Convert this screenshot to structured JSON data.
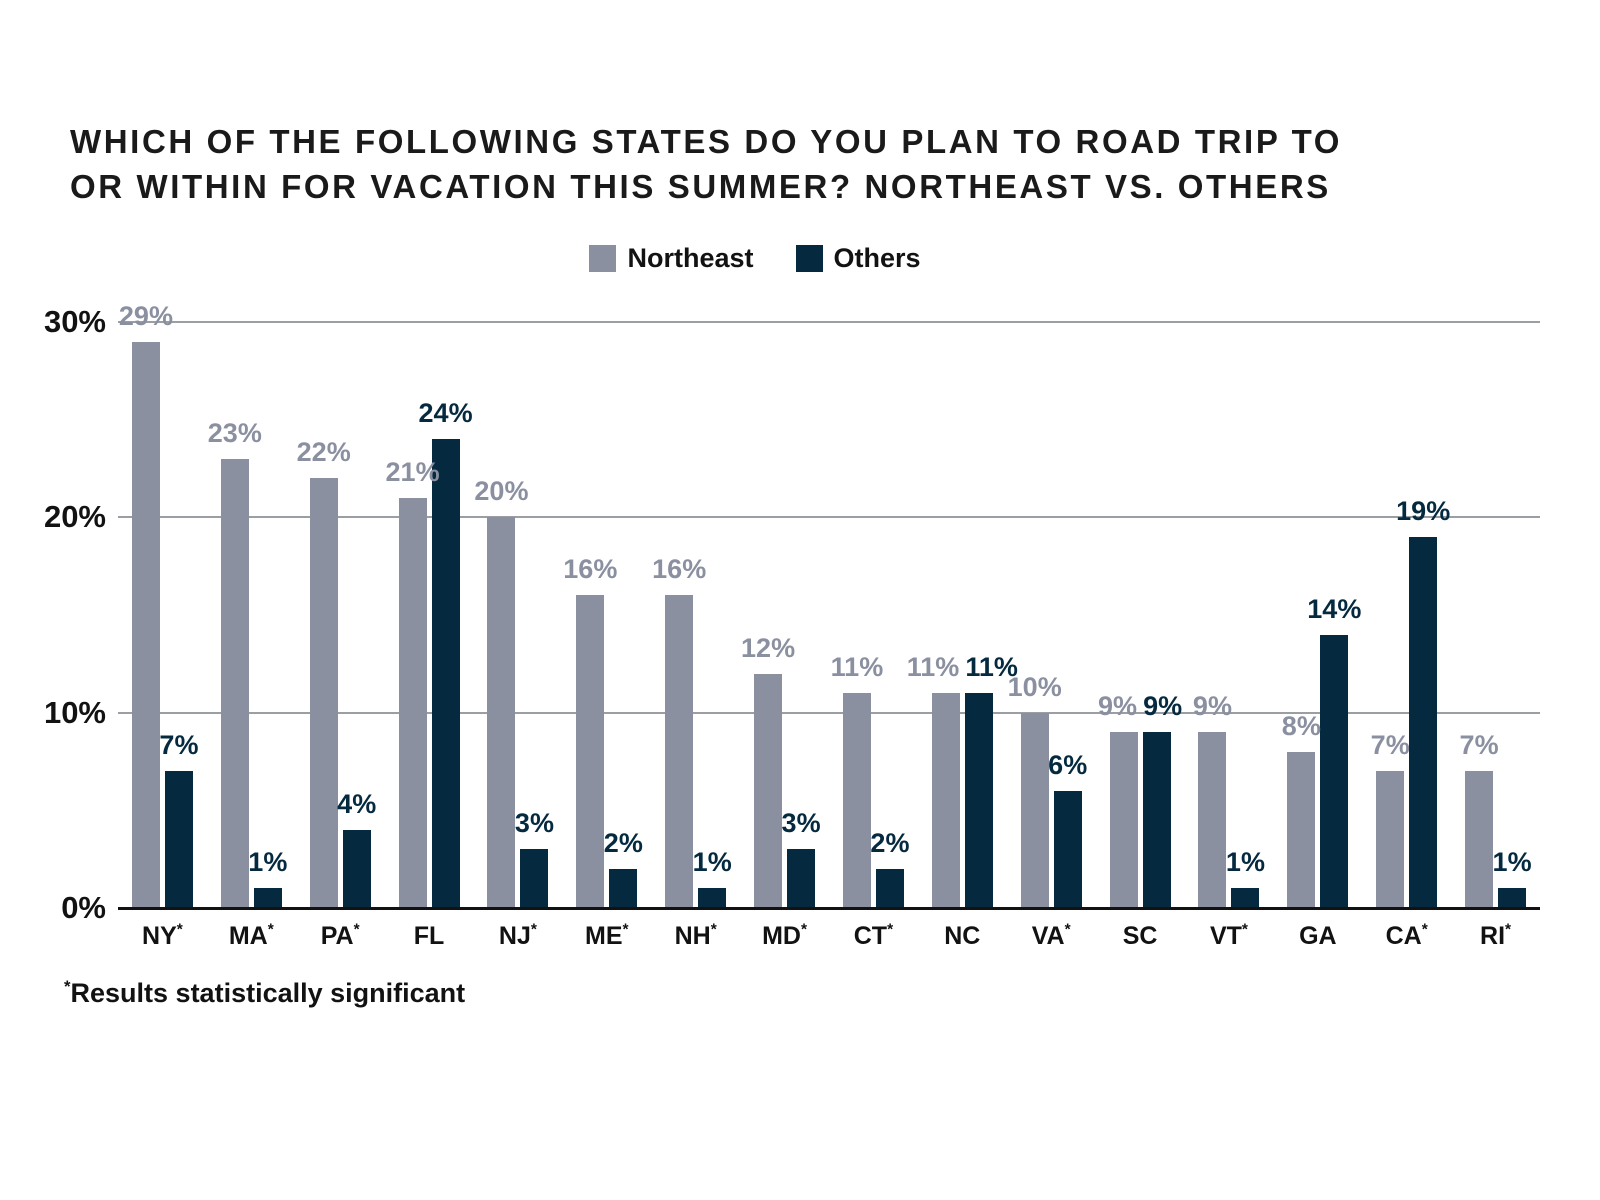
{
  "title": {
    "line1": "WHICH OF THE FOLLOWING STATES DO YOU PLAN TO ROAD TRIP TO",
    "line2": "OR WITHIN FOR VACATION THIS SUMMER? NORTHEAST VS. OTHERS"
  },
  "legend": {
    "items": [
      {
        "label": "Northeast",
        "color": "#8b90a1"
      },
      {
        "label": "Others",
        "color": "#052a40"
      }
    ]
  },
  "footnote": {
    "marker": "*",
    "text": "Results statistically significant"
  },
  "colors": {
    "bar_northeast": "#8b90a1",
    "bar_others": "#052a40",
    "gridline": "#9b9ea3",
    "axis_line": "#121212",
    "text": "#1a1a1a",
    "background": "#ffffff"
  },
  "chart_data": {
    "type": "bar",
    "title": "WHICH OF THE FOLLOWING STATES DO YOU PLAN TO ROAD TRIP TO OR WITHIN FOR VACATION THIS SUMMER? NORTHEAST VS. OTHERS",
    "categories": [
      {
        "label": "NY",
        "significant": true
      },
      {
        "label": "MA",
        "significant": true
      },
      {
        "label": "PA",
        "significant": true
      },
      {
        "label": "FL",
        "significant": false
      },
      {
        "label": "NJ",
        "significant": true
      },
      {
        "label": "ME",
        "significant": true
      },
      {
        "label": "NH",
        "significant": true
      },
      {
        "label": "MD",
        "significant": true
      },
      {
        "label": "CT",
        "significant": true
      },
      {
        "label": "NC",
        "significant": false
      },
      {
        "label": "VA",
        "significant": true
      },
      {
        "label": "SC",
        "significant": false
      },
      {
        "label": "VT",
        "significant": true
      },
      {
        "label": "GA",
        "significant": false
      },
      {
        "label": "CA",
        "significant": true
      },
      {
        "label": "RI",
        "significant": true
      }
    ],
    "series": [
      {
        "name": "Northeast",
        "color": "#8b90a1",
        "values": [
          29,
          23,
          22,
          21,
          20,
          16,
          16,
          12,
          11,
          11,
          10,
          9,
          9,
          8,
          7,
          7
        ]
      },
      {
        "name": "Others",
        "color": "#052a40",
        "values": [
          7,
          1,
          4,
          24,
          3,
          2,
          1,
          3,
          2,
          11,
          6,
          9,
          1,
          14,
          19,
          1
        ]
      }
    ],
    "value_suffix": "%",
    "y_axis": {
      "ticks": [
        "30%",
        "20%",
        "10%",
        "0%"
      ],
      "tick_values": [
        30,
        20,
        10,
        0
      ],
      "max": 30
    },
    "grid": "horizontal",
    "legend_position": "top",
    "footnote": "*Results statistically significant"
  }
}
